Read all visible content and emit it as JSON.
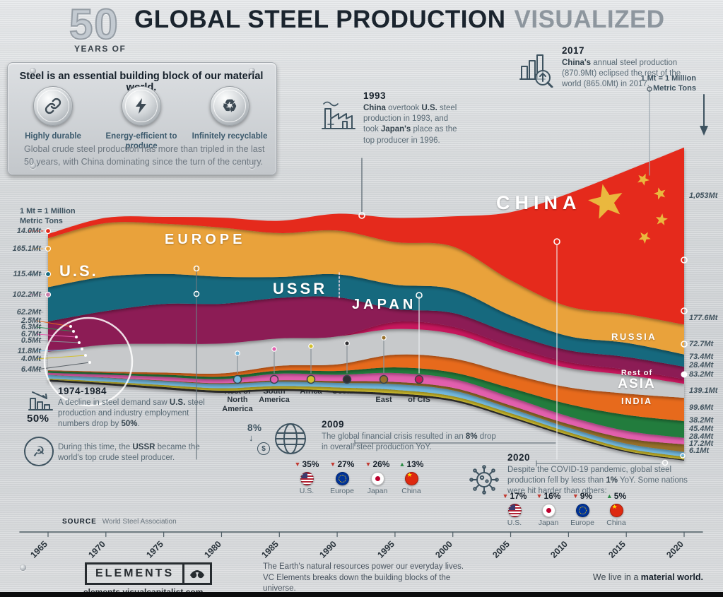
{
  "header": {
    "big_number": "50",
    "years_of": "YEARS OF",
    "title": "GLOBAL STEEL PRODUCTION",
    "title_accent": "VISUALIZED"
  },
  "info_panel": {
    "headline": "Steel is an essential building block of our material world.",
    "features": [
      {
        "icon": "chain-link",
        "label": "Highly durable"
      },
      {
        "icon": "lightning-bolt",
        "label": "Energy-efficient to produce"
      },
      {
        "icon": "recycle",
        "label": "Infinitely recyclable"
      }
    ],
    "body": "Global crude steel production has more than tripled in the last 50 years, with China dominating since the turn of the century."
  },
  "unit_note": {
    "line1": "1 Mt = 1 Million",
    "line2": "Metric Tons"
  },
  "annotations": {
    "y1993": {
      "heading": "1993",
      "body_html": "<b>China</b> overtook <b>U.S.</b> steel production in 1993, and took <b>Japan's</b> place as the top producer in 1996."
    },
    "y2017": {
      "heading": "2017",
      "body_html": "<b>China's</b> annual steel production (870.9Mt) eclipsed the rest of the world (865.0Mt) in 2017."
    },
    "y1974": {
      "heading": "1974-1984",
      "stat": "50%",
      "body_html": "A decline in steel demand saw <b>U.S.</b> steel production and industry employment numbers drop by <b>50%</b>.",
      "note_html": "During this time, the <b>USSR</b> became the world's top crude steel producer."
    },
    "y2009": {
      "heading": "2009",
      "icon_stat": "8%",
      "body_html": "The global financial crisis resulted in an <b>8%</b> drop in overall steel production YoY.",
      "stats": [
        {
          "label": "U.S.",
          "arrow": "▼",
          "change": "35%",
          "color": "#c13a31"
        },
        {
          "label": "Europe",
          "arrow": "▼",
          "change": "27%",
          "color": "#c13a31"
        },
        {
          "label": "Japan",
          "arrow": "▼",
          "change": "26%",
          "color": "#c13a31"
        },
        {
          "label": "China",
          "arrow": "▲",
          "change": "13%",
          "color": "#2c8a46"
        }
      ]
    },
    "y2020": {
      "heading": "2020",
      "body_html": "Despite the COVID-19 pandemic, global steel production fell by less than <b>1%</b> YoY. Some nations were hit harder than others:",
      "stats": [
        {
          "label": "U.S.",
          "arrow": "▼",
          "change": "17%",
          "color": "#c13a31"
        },
        {
          "label": "Japan",
          "arrow": "▼",
          "change": "16%",
          "color": "#c13a31"
        },
        {
          "label": "Europe",
          "arrow": "▼",
          "change": "9%",
          "color": "#c13a31"
        },
        {
          "label": "China",
          "arrow": "▲",
          "change": "5%",
          "color": "#2c8a46"
        }
      ]
    }
  },
  "chart_data": {
    "type": "area",
    "variant": "streamgraph",
    "title": "50 Years of Global Steel Production Visualized",
    "unit": "Mt (1 Mt = 1 Million Metric Tons)",
    "x": [
      1965,
      1970,
      1975,
      1980,
      1985,
      1990,
      1995,
      2000,
      2005,
      2010,
      2015,
      2020
    ],
    "series_order": "top-to-bottom",
    "series": [
      {
        "key": "china",
        "name": "China",
        "color": "#e5291b",
        "values": [
          14,
          18,
          24,
          37,
          47,
          66,
          95,
          129,
          356,
          639,
          804,
          1053
        ]
      },
      {
        "key": "europe",
        "name": "Europe",
        "color": "#e9a23b",
        "values": [
          165.1,
          185,
          178,
          183,
          168,
          172,
          168,
          183,
          185,
          168,
          162,
          177.6
        ]
      },
      {
        "key": "us",
        "name": "U.S.",
        "color": "#15697e",
        "values": [
          115.4,
          119,
          106,
          101,
          80,
          90,
          95,
          102,
          95,
          80,
          79,
          72.7
        ]
      },
      {
        "key": "ussr_russia",
        "name": "USSR / Russia",
        "color": "#8c1a55",
        "values": [
          102.2,
          116,
          141,
          148,
          155,
          154,
          51,
          59,
          66,
          67,
          71,
          73.4
        ]
      },
      {
        "key": "rest_of_cis",
        "name": "Rest of CIS",
        "color": "#c6195c",
        "values": [
          0,
          0,
          0,
          0,
          0,
          0,
          28,
          30,
          33,
          33,
          30,
          28.4
        ]
      },
      {
        "key": "japan",
        "name": "Japan",
        "color": "#c7c9cb",
        "values": [
          62.2,
          93,
          102,
          111,
          105,
          110,
          101,
          106,
          112,
          110,
          105,
          83.2
        ]
      },
      {
        "key": "rest_of_asia",
        "name": "Rest of Asia",
        "color": "#e76a1f",
        "values": [
          2.5,
          4,
          7,
          12,
          18,
          26,
          50,
          60,
          75,
          95,
          120,
          139.1
        ]
      },
      {
        "key": "india",
        "name": "India",
        "color": "#207b3e",
        "values": [
          6.3,
          6.3,
          8,
          9.5,
          12,
          15,
          22,
          27,
          46,
          69,
          89,
          99.6
        ]
      },
      {
        "key": "south_america",
        "name": "South America",
        "color": "#e25fae",
        "values": [
          6.7,
          10,
          13,
          15,
          25,
          25,
          35,
          39,
          45,
          44,
          43,
          38.2
        ]
      },
      {
        "key": "middle_east",
        "name": "Middle East",
        "color": "#97702b",
        "values": [
          0.5,
          1,
          2,
          3,
          5,
          7,
          9,
          11,
          15,
          20,
          29,
          45.4
        ]
      },
      {
        "key": "rest_of_north_america",
        "name": "Rest of North America",
        "color": "#72b8de",
        "values": [
          11.8,
          13,
          14,
          16,
          17,
          18,
          22,
          25,
          25,
          25,
          26,
          28.4
        ]
      },
      {
        "key": "africa",
        "name": "Africa",
        "color": "#d2c02f",
        "values": [
          4,
          5,
          7,
          9,
          11,
          13,
          14,
          14,
          18,
          17,
          15,
          17.2
        ]
      },
      {
        "key": "oceania",
        "name": "Oceania",
        "color": "#303033",
        "values": [
          6.4,
          7,
          8,
          8,
          7,
          8,
          9,
          8,
          9,
          9,
          7,
          6.1
        ]
      }
    ],
    "left_axis_labels": [
      {
        "text": "14.0Mt",
        "series": "China"
      },
      {
        "text": "165.1Mt",
        "series": "Europe"
      },
      {
        "text": "115.4Mt",
        "series": "U.S."
      },
      {
        "text": "102.2Mt",
        "series": "USSR"
      },
      {
        "text": "62.2Mt",
        "series": "Japan"
      },
      {
        "text": "2.5Mt",
        "series": "Rest of Asia"
      },
      {
        "text": "6.3Mt",
        "series": "India"
      },
      {
        "text": "6.7Mt",
        "series": "South America"
      },
      {
        "text": "0.5Mt",
        "series": "Middle East"
      },
      {
        "text": "11.8Mt",
        "series": "Rest of North America"
      },
      {
        "text": "4.0Mt",
        "series": "Africa"
      },
      {
        "text": "6.4Mt",
        "series": "Oceania"
      }
    ],
    "right_axis_labels": [
      {
        "text": "1,053Mt",
        "series": "China"
      },
      {
        "text": "177.6Mt",
        "series": "Europe"
      },
      {
        "text": "72.7Mt",
        "series": "U.S."
      },
      {
        "text": "73.4Mt",
        "series": "Russia"
      },
      {
        "text": "28.4Mt",
        "series": "Rest of CIS"
      },
      {
        "text": "83.2Mt",
        "series": "Japan"
      },
      {
        "text": "139.1Mt",
        "series": "Rest of Asia"
      },
      {
        "text": "99.6Mt",
        "series": "India"
      },
      {
        "text": "38.2Mt",
        "series": "South America"
      },
      {
        "text": "45.4Mt",
        "series": "Middle East"
      },
      {
        "text": "28.4Mt",
        "series": "Rest of North America"
      },
      {
        "text": "17.2Mt",
        "series": "Africa"
      },
      {
        "text": "6.1Mt",
        "series": "Oceania"
      }
    ],
    "region_callouts": [
      {
        "label": "Rest of North America",
        "label_html": "Rest of<br>North<br>America",
        "color": "#72b8de"
      },
      {
        "label": "South America",
        "label_html": "South<br>America",
        "color": "#e25fae"
      },
      {
        "label": "Africa",
        "label_html": "Africa",
        "color": "#d2c02f"
      },
      {
        "label": "Oceania",
        "label_html": "Oceania",
        "color": "#303033"
      },
      {
        "label": "Middle East",
        "label_html": "Middle<br>East",
        "color": "#97702b"
      },
      {
        "label": "Rest of CIS",
        "label_html": "Rest<br>of CIS",
        "color": "#c6195c"
      }
    ],
    "chart_labels": {
      "europe": "EUROPE",
      "us": "U.S.",
      "ussr": "USSR",
      "japan": "JAPAN",
      "china": "CHINA",
      "russia": "RUSSIA",
      "rest_of": "Rest of",
      "asia": "ASIA",
      "india": "INDIA"
    }
  },
  "axis": {
    "years": [
      "1965",
      "1970",
      "1975",
      "1980",
      "1985",
      "1990",
      "1995",
      "2000",
      "2005",
      "2010",
      "2015",
      "2020"
    ]
  },
  "source": {
    "label": "SOURCE",
    "text": "World Steel Association"
  },
  "footer": {
    "brand": "ELEMENTS",
    "url": "elements.visualcapitalist.com",
    "tagline1": "The Earth's natural resources power our everyday lives.",
    "tagline2": "VC Elements breaks down the building blocks of the universe.",
    "material_pre": "We live in a ",
    "material_bold": "material world."
  }
}
